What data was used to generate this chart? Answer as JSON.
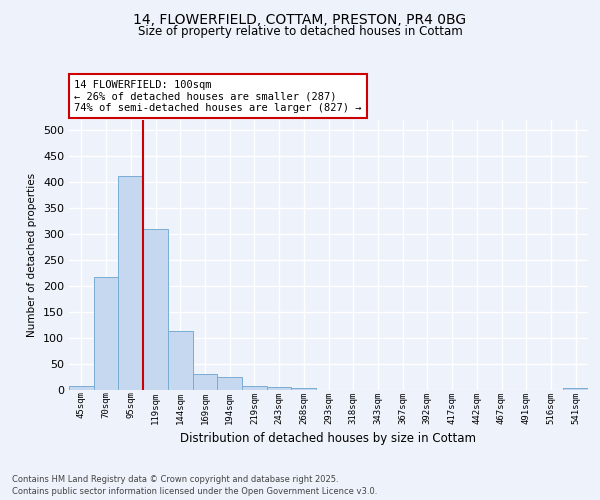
{
  "title_line1": "14, FLOWERFIELD, COTTAM, PRESTON, PR4 0BG",
  "title_line2": "Size of property relative to detached houses in Cottam",
  "xlabel": "Distribution of detached houses by size in Cottam",
  "ylabel": "Number of detached properties",
  "categories": [
    "45sqm",
    "70sqm",
    "95sqm",
    "119sqm",
    "144sqm",
    "169sqm",
    "194sqm",
    "219sqm",
    "243sqm",
    "268sqm",
    "293sqm",
    "318sqm",
    "343sqm",
    "367sqm",
    "392sqm",
    "417sqm",
    "442sqm",
    "467sqm",
    "491sqm",
    "516sqm",
    "541sqm"
  ],
  "values": [
    8,
    218,
    413,
    310,
    113,
    30,
    25,
    7,
    6,
    3,
    0,
    0,
    0,
    0,
    0,
    0,
    0,
    0,
    0,
    0,
    3
  ],
  "bar_color": "#c5d8f0",
  "bar_edge_color": "#7aadd4",
  "annotation_text": "14 FLOWERFIELD: 100sqm\n← 26% of detached houses are smaller (287)\n74% of semi-detached houses are larger (827) →",
  "annotation_box_color": "#ffffff",
  "annotation_box_edge": "#cc0000",
  "ylim": [
    0,
    520
  ],
  "yticks": [
    0,
    50,
    100,
    150,
    200,
    250,
    300,
    350,
    400,
    450,
    500
  ],
  "footer_line1": "Contains HM Land Registry data © Crown copyright and database right 2025.",
  "footer_line2": "Contains public sector information licensed under the Open Government Licence v3.0.",
  "bg_color": "#eef2fb",
  "grid_color": "#ffffff",
  "red_line_color": "#cc0000"
}
